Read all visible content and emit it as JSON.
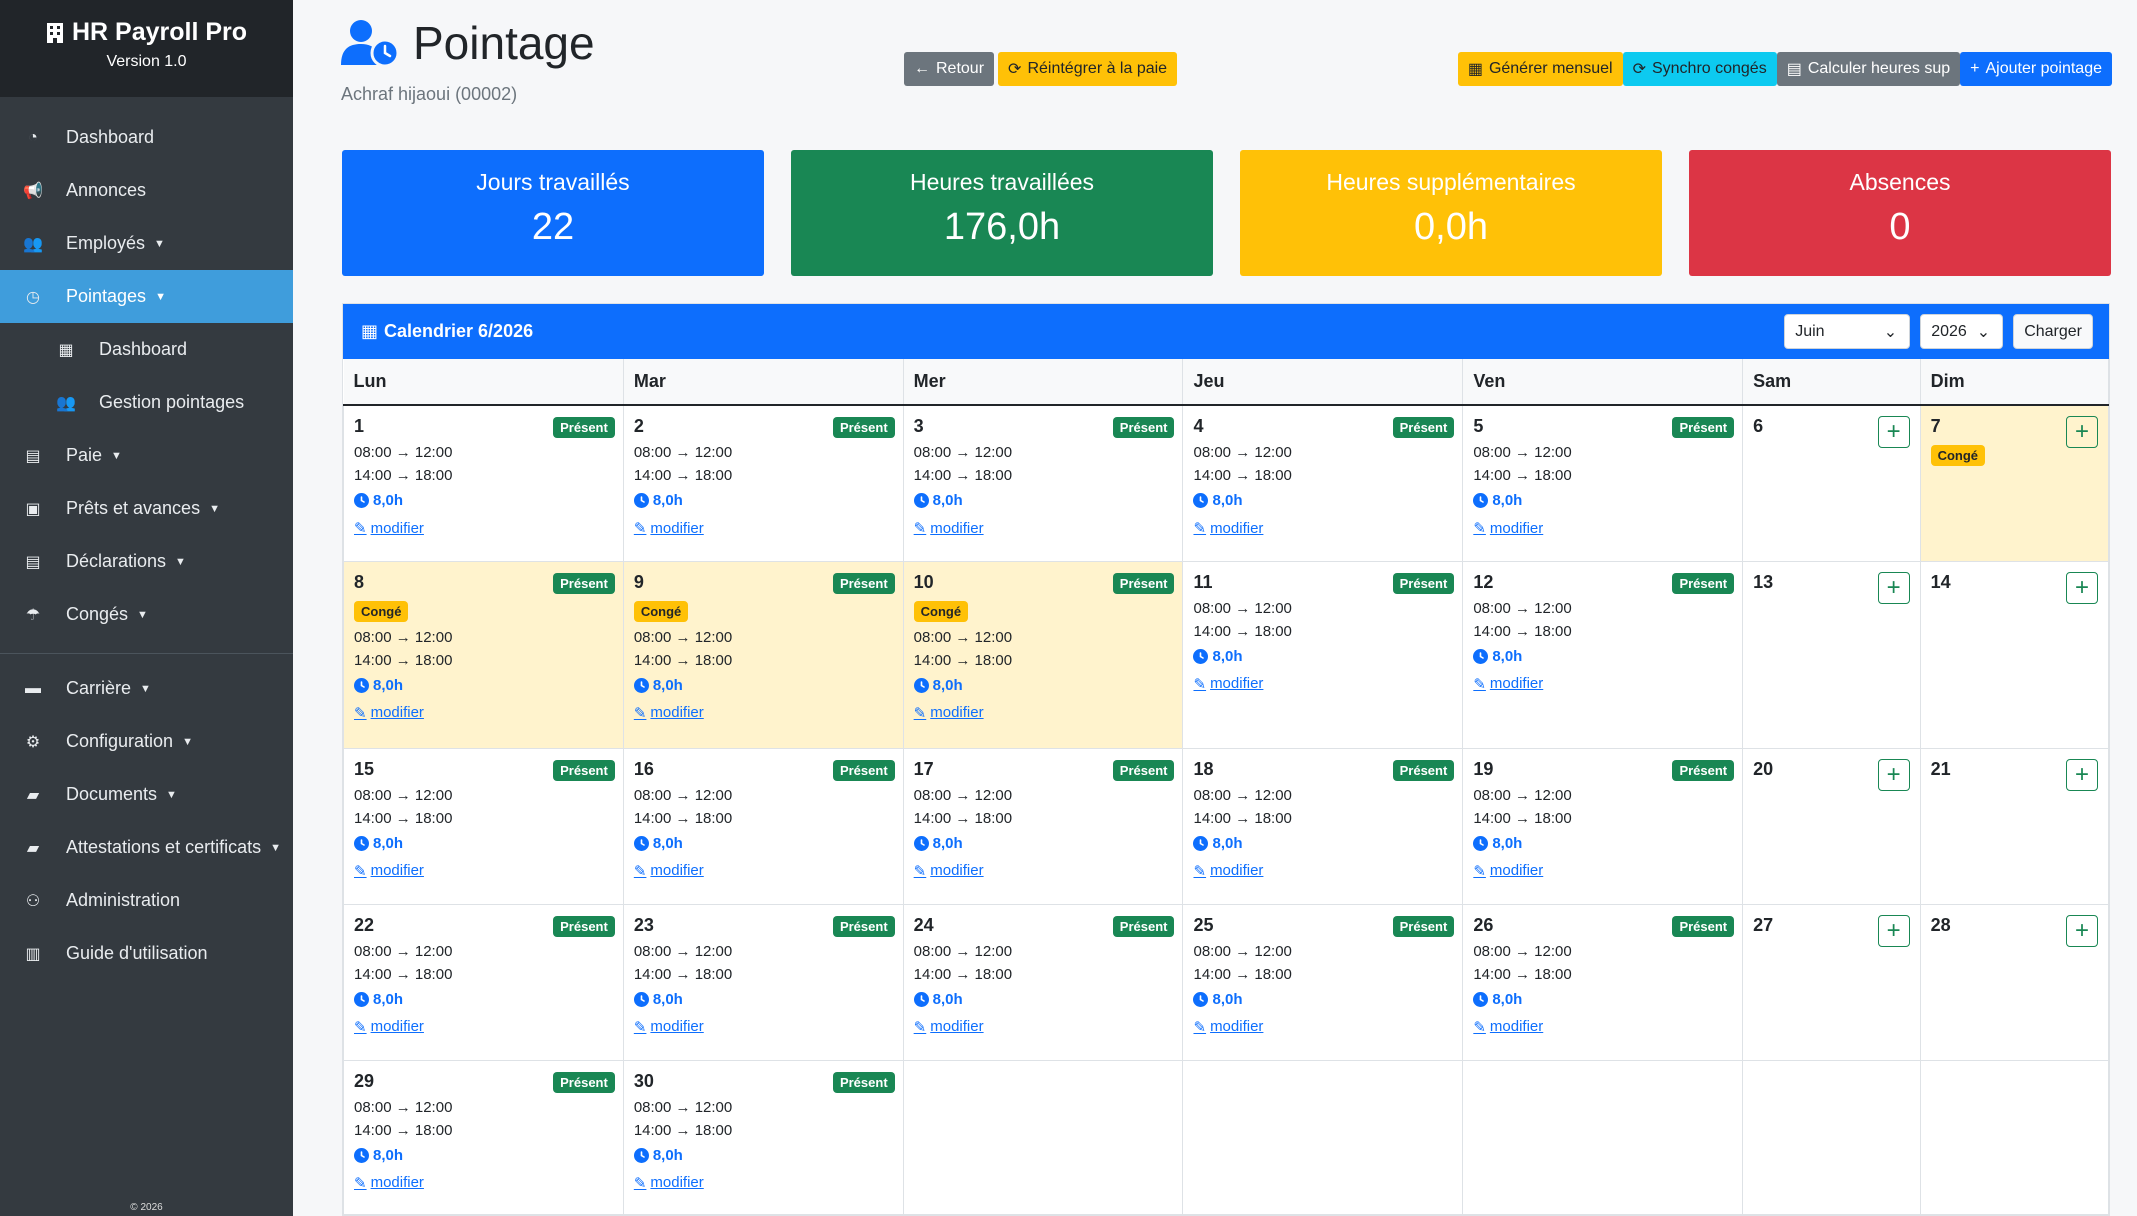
{
  "app": {
    "title": "HR Payroll Pro",
    "version": "Version 1.0",
    "copyright": "© 2026"
  },
  "sidebar": {
    "items": [
      {
        "label": "Dashboard",
        "icon": "dashboard-icon"
      },
      {
        "label": "Annonces",
        "icon": "megaphone-icon"
      },
      {
        "label": "Employés",
        "icon": "users-icon"
      },
      {
        "label": "Pointages",
        "icon": "clock-icon"
      },
      {
        "label": "Dashboard",
        "icon": "calendar-icon"
      },
      {
        "label": "Gestion pointages",
        "icon": "users-icon"
      },
      {
        "label": "Paie",
        "icon": "file-icon"
      },
      {
        "label": "Prêts et avances",
        "icon": "money-icon"
      },
      {
        "label": "Déclarations",
        "icon": "file-icon"
      },
      {
        "label": "Congés",
        "icon": "umbrella-beach-icon"
      },
      {
        "label": "Carrière",
        "icon": "briefcase-icon"
      },
      {
        "label": "Configuration",
        "icon": "cogs-icon"
      },
      {
        "label": "Documents",
        "icon": "folder-icon"
      },
      {
        "label": "Attestations et certificats",
        "icon": "folder-icon"
      },
      {
        "label": "Administration",
        "icon": "user-cog-icon"
      },
      {
        "label": "Guide d'utilisation",
        "icon": "book-icon"
      }
    ]
  },
  "header": {
    "title": "Pointage",
    "employee": "Achraf hijaoui (00002)",
    "back_label": "Retour",
    "reintegrate_label": "Réintégrer à la paie",
    "generate_label": "Générer mensuel",
    "sync_label": "Synchro congés",
    "calc_label": "Calculer heures sup",
    "add_label": "Ajouter pointage"
  },
  "stats": [
    {
      "label": "Jours travaillés",
      "value": "22"
    },
    {
      "label": "Heures travaillées",
      "value": "176,0h"
    },
    {
      "label": "Heures supplémentaires",
      "value": "0,0h"
    },
    {
      "label": "Absences",
      "value": "0"
    }
  ],
  "calendar": {
    "title": "Calendrier 6/2026",
    "month_select": "Juin",
    "year_select": "2026",
    "load_label": "Charger",
    "weekdays": [
      "Lun",
      "Mar",
      "Mer",
      "Jeu",
      "Ven",
      "Sam",
      "Dim"
    ],
    "present_label": "Présent",
    "conge_label": "Congé",
    "morning": "08:00 → 12:00",
    "afternoon": "14:00 → 18:00",
    "hours": "8,0h",
    "edit_label": "modifier",
    "colors": {
      "present": "#198754",
      "conge_bg": "#fff3cd",
      "conge_badge": "#ffc107",
      "header": "#0d6efd"
    },
    "weeks": [
      [
        {
          "d": "1",
          "t": "work"
        },
        {
          "d": "2",
          "t": "work"
        },
        {
          "d": "3",
          "t": "work"
        },
        {
          "d": "4",
          "t": "work"
        },
        {
          "d": "5",
          "t": "work"
        },
        {
          "d": "6",
          "t": "empty"
        },
        {
          "d": "7",
          "t": "conge-only"
        }
      ],
      [
        {
          "d": "8",
          "t": "work-conge"
        },
        {
          "d": "9",
          "t": "work-conge"
        },
        {
          "d": "10",
          "t": "work-conge"
        },
        {
          "d": "11",
          "t": "work"
        },
        {
          "d": "12",
          "t": "work"
        },
        {
          "d": "13",
          "t": "empty"
        },
        {
          "d": "14",
          "t": "empty"
        }
      ],
      [
        {
          "d": "15",
          "t": "work"
        },
        {
          "d": "16",
          "t": "work"
        },
        {
          "d": "17",
          "t": "work"
        },
        {
          "d": "18",
          "t": "work"
        },
        {
          "d": "19",
          "t": "work"
        },
        {
          "d": "20",
          "t": "empty"
        },
        {
          "d": "21",
          "t": "empty"
        }
      ],
      [
        {
          "d": "22",
          "t": "work"
        },
        {
          "d": "23",
          "t": "work"
        },
        {
          "d": "24",
          "t": "work"
        },
        {
          "d": "25",
          "t": "work"
        },
        {
          "d": "26",
          "t": "work"
        },
        {
          "d": "27",
          "t": "empty"
        },
        {
          "d": "28",
          "t": "empty"
        }
      ],
      [
        {
          "d": "29",
          "t": "work"
        },
        {
          "d": "30",
          "t": "work"
        },
        {
          "d": "",
          "t": "blank"
        },
        {
          "d": "",
          "t": "blank"
        },
        {
          "d": "",
          "t": "blank"
        },
        {
          "d": "",
          "t": "blank"
        },
        {
          "d": "",
          "t": "blank"
        }
      ]
    ]
  }
}
